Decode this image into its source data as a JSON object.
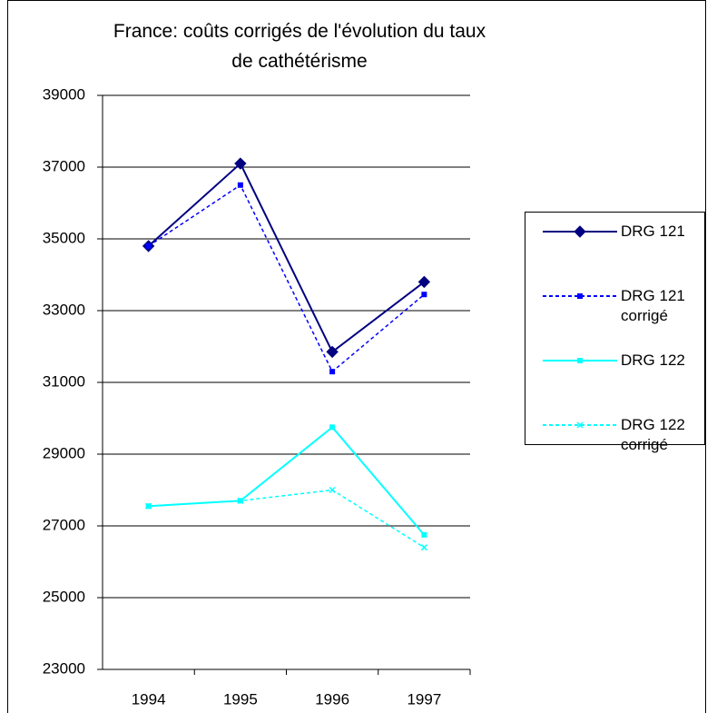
{
  "chart_data": {
    "type": "line",
    "title": "France: coûts corrigés de l'évolution du taux de cathétérisme",
    "categories": [
      "1994",
      "1995",
      "1996",
      "1997"
    ],
    "series": [
      {
        "name": "DRG 121",
        "color": "#000080",
        "dash": false,
        "marker": "diamond",
        "values": [
          34800,
          37100,
          31850,
          33800
        ]
      },
      {
        "name": "DRG 121 corrigé",
        "color": "#0000ff",
        "dash": true,
        "marker": "square",
        "values": [
          34800,
          36500,
          31300,
          33450
        ]
      },
      {
        "name": "DRG 122",
        "color": "#00ffff",
        "dash": false,
        "marker": "square",
        "values": [
          27550,
          27700,
          29750,
          26750
        ]
      },
      {
        "name": "DRG 122 corrigé",
        "color": "#00ffff",
        "dash": true,
        "marker": "x",
        "values": [
          27550,
          27700,
          28000,
          26400
        ]
      }
    ],
    "ylim": [
      23000,
      39000
    ],
    "yticks": [
      23000,
      25000,
      27000,
      29000,
      31000,
      33000,
      35000,
      37000,
      39000
    ],
    "grid": true,
    "legend": "right"
  }
}
